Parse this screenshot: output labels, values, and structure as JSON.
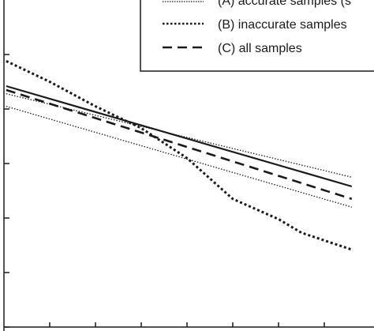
{
  "chart_data": {
    "type": "line",
    "title": "",
    "xlabel": "",
    "ylabel": "",
    "xlim": [
      0,
      8
    ],
    "ylim": [
      0,
      6
    ],
    "x_tick_values": [
      1,
      2,
      3,
      4,
      5,
      6,
      7
    ],
    "y_tick_values": [
      0,
      1,
      2,
      3,
      4,
      5
    ],
    "grid": false,
    "legend_position": "top-right",
    "legend": [
      {
        "key": "A",
        "label": "(A) accurate samples (s"
      },
      {
        "key": "B",
        "label": "(B) inaccurate samples"
      },
      {
        "key": "C",
        "label": "(C) all samples"
      }
    ],
    "series": [
      {
        "key": "solid",
        "style": "solid",
        "points": [
          [
            0.05,
            4.42
          ],
          [
            7.6,
            2.58
          ]
        ]
      },
      {
        "key": "A_upper",
        "style": "dotted-thin",
        "points": [
          [
            0.05,
            4.28
          ],
          [
            7.6,
            2.75
          ]
        ]
      },
      {
        "key": "A_lower",
        "style": "dotted-thin",
        "points": [
          [
            0.05,
            4.05
          ],
          [
            7.6,
            2.2
          ]
        ]
      },
      {
        "key": "B",
        "style": "dotted",
        "points": [
          [
            0.05,
            4.88
          ],
          [
            1.0,
            4.5
          ],
          [
            2.0,
            4.05
          ],
          [
            3.0,
            3.65
          ],
          [
            4.0,
            3.1
          ],
          [
            5.0,
            2.35
          ],
          [
            6.0,
            1.98
          ],
          [
            6.5,
            1.73
          ],
          [
            7.6,
            1.42
          ]
        ]
      },
      {
        "key": "C",
        "style": "dashed",
        "points": [
          [
            0.05,
            4.35
          ],
          [
            7.6,
            2.35
          ]
        ]
      }
    ]
  }
}
